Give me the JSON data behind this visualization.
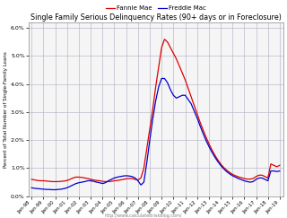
{
  "title": "Single Family Serious Delinquency Rates (90+ days or in Foreclosure)",
  "ylabel": "Percent of Total Number of Single-Family Loans",
  "url_label": "http://www.calculatedriskblog.com/",
  "legend_fannie": "Fannie Mae",
  "legend_freddie": "Freddie Mac",
  "fannie_color": "#dd0000",
  "freddie_color": "#0000cc",
  "background_color": "#f5f5f5",
  "grid_color": "#bbbbcc",
  "ylim": [
    0.0,
    0.062
  ],
  "yticks": [
    0.0,
    0.01,
    0.02,
    0.03,
    0.04,
    0.05,
    0.06
  ],
  "ytick_labels": [
    "0.0%",
    "1.0%",
    "2.0%",
    "3.0%",
    "4.0%",
    "5.0%",
    "6.0%"
  ],
  "xlim": [
    1997.75,
    2019.3
  ],
  "fannie_x": [
    1998.0,
    1998.25,
    1998.5,
    1998.75,
    1999.0,
    1999.25,
    1999.5,
    1999.75,
    2000.0,
    2000.25,
    2000.5,
    2000.75,
    2001.0,
    2001.25,
    2001.5,
    2001.75,
    2002.0,
    2002.25,
    2002.5,
    2002.75,
    2003.0,
    2003.25,
    2003.5,
    2003.75,
    2004.0,
    2004.25,
    2004.5,
    2004.75,
    2005.0,
    2005.25,
    2005.5,
    2005.75,
    2006.0,
    2006.25,
    2006.5,
    2006.75,
    2007.0,
    2007.25,
    2007.5,
    2007.75,
    2008.0,
    2008.25,
    2008.5,
    2008.75,
    2009.0,
    2009.25,
    2009.5,
    2009.75,
    2010.0,
    2010.25,
    2010.5,
    2010.75,
    2011.0,
    2011.25,
    2011.5,
    2011.75,
    2012.0,
    2012.25,
    2012.5,
    2012.75,
    2013.0,
    2013.25,
    2013.5,
    2013.75,
    2014.0,
    2014.25,
    2014.5,
    2014.75,
    2015.0,
    2015.25,
    2015.5,
    2015.75,
    2016.0,
    2016.25,
    2016.5,
    2016.75,
    2017.0,
    2017.25,
    2017.5,
    2017.75,
    2018.0,
    2018.25,
    2018.5,
    2018.75,
    2019.0
  ],
  "fannie_y": [
    0.006,
    0.0058,
    0.0056,
    0.0055,
    0.0055,
    0.0054,
    0.0053,
    0.0052,
    0.0052,
    0.0052,
    0.0053,
    0.0054,
    0.0056,
    0.006,
    0.0065,
    0.0068,
    0.0068,
    0.0067,
    0.0065,
    0.0063,
    0.006,
    0.0058,
    0.0056,
    0.0055,
    0.0053,
    0.0052,
    0.0052,
    0.0053,
    0.0055,
    0.0056,
    0.0058,
    0.006,
    0.0062,
    0.0063,
    0.0063,
    0.006,
    0.0058,
    0.0065,
    0.01,
    0.017,
    0.024,
    0.031,
    0.039,
    0.046,
    0.053,
    0.056,
    0.055,
    0.053,
    0.051,
    0.049,
    0.0465,
    0.044,
    0.0415,
    0.0385,
    0.0355,
    0.0325,
    0.0295,
    0.0265,
    0.0238,
    0.0212,
    0.0188,
    0.0166,
    0.0147,
    0.013,
    0.0115,
    0.0103,
    0.0093,
    0.0085,
    0.0078,
    0.0073,
    0.0069,
    0.0066,
    0.0063,
    0.0061,
    0.0061,
    0.0063,
    0.007,
    0.0075,
    0.0075,
    0.007,
    0.0065,
    0.0115,
    0.011,
    0.0105,
    0.011
  ],
  "freddie_x": [
    1998.0,
    1998.25,
    1998.5,
    1998.75,
    1999.0,
    1999.25,
    1999.5,
    1999.75,
    2000.0,
    2000.25,
    2000.5,
    2000.75,
    2001.0,
    2001.25,
    2001.5,
    2001.75,
    2002.0,
    2002.25,
    2002.5,
    2002.75,
    2003.0,
    2003.25,
    2003.5,
    2003.75,
    2004.0,
    2004.25,
    2004.5,
    2004.75,
    2005.0,
    2005.25,
    2005.5,
    2005.75,
    2006.0,
    2006.25,
    2006.5,
    2006.75,
    2007.0,
    2007.25,
    2007.5,
    2007.75,
    2008.0,
    2008.25,
    2008.5,
    2008.75,
    2009.0,
    2009.25,
    2009.5,
    2009.75,
    2010.0,
    2010.25,
    2010.5,
    2010.75,
    2011.0,
    2011.25,
    2011.5,
    2011.75,
    2012.0,
    2012.25,
    2012.5,
    2012.75,
    2013.0,
    2013.25,
    2013.5,
    2013.75,
    2014.0,
    2014.25,
    2014.5,
    2014.75,
    2015.0,
    2015.25,
    2015.5,
    2015.75,
    2016.0,
    2016.25,
    2016.5,
    2016.75,
    2017.0,
    2017.25,
    2017.5,
    2017.75,
    2018.0,
    2018.25,
    2018.5,
    2018.75,
    2019.0
  ],
  "freddie_y": [
    0.003,
    0.0028,
    0.0027,
    0.0026,
    0.0025,
    0.0024,
    0.0024,
    0.0023,
    0.0023,
    0.0024,
    0.0025,
    0.0027,
    0.003,
    0.0035,
    0.004,
    0.0045,
    0.0048,
    0.005,
    0.0052,
    0.0055,
    0.0055,
    0.0053,
    0.005,
    0.0048,
    0.0045,
    0.0048,
    0.0055,
    0.006,
    0.0065,
    0.0068,
    0.007,
    0.0072,
    0.0073,
    0.0072,
    0.007,
    0.0065,
    0.0055,
    0.004,
    0.005,
    0.012,
    0.02,
    0.0275,
    0.034,
    0.039,
    0.042,
    0.042,
    0.0405,
    0.038,
    0.036,
    0.035,
    0.0355,
    0.036,
    0.036,
    0.0345,
    0.033,
    0.0305,
    0.028,
    0.0252,
    0.0225,
    0.02,
    0.0178,
    0.0158,
    0.014,
    0.0124,
    0.011,
    0.0098,
    0.0088,
    0.008,
    0.0073,
    0.0068,
    0.0063,
    0.0059,
    0.0055,
    0.0052,
    0.005,
    0.0052,
    0.006,
    0.0065,
    0.0065,
    0.006,
    0.0055,
    0.009,
    0.009,
    0.0088,
    0.009
  ],
  "xtick_years": [
    1998,
    1999,
    2000,
    2001,
    2002,
    2003,
    2004,
    2005,
    2006,
    2007,
    2008,
    2009,
    2010,
    2011,
    2012,
    2013,
    2014,
    2015,
    2016,
    2017,
    2018,
    2019
  ],
  "xtick_labels": [
    "Jan-98",
    "Jan-99",
    "Jan-00",
    "Jan-01",
    "Jan-02",
    "Jan-03",
    "Jan-04",
    "Jan-05",
    "Jan-06",
    "Jan-07",
    "Jan-08",
    "Jan-09",
    "Jan-10",
    "Jan-11",
    "Jan-12",
    "Jan-13",
    "Jan-14",
    "Jan-15",
    "Jan-16",
    "Jan-17",
    "Jan-18",
    "Jan-19"
  ]
}
